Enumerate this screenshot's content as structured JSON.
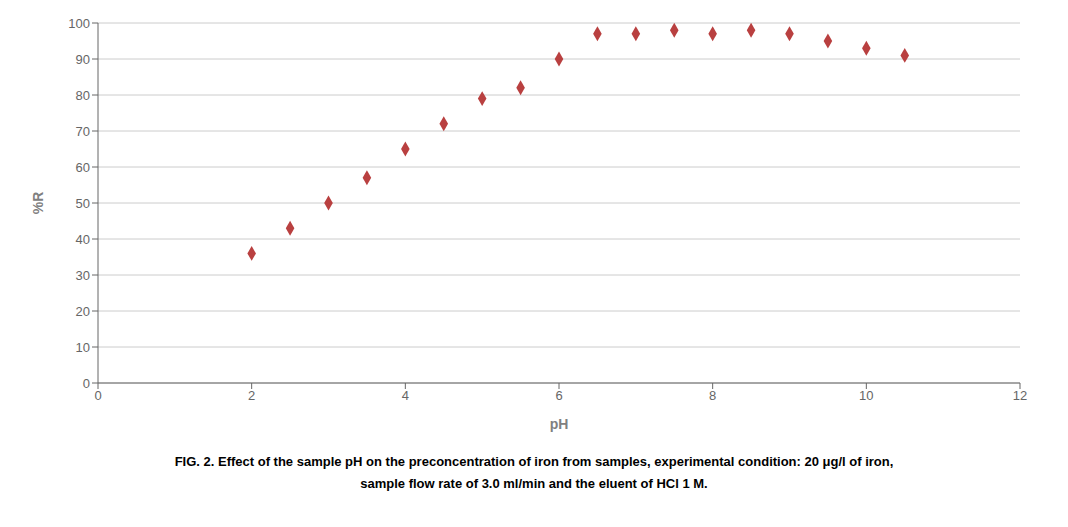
{
  "chart_data": {
    "type": "scatter",
    "x": [
      2.0,
      2.5,
      3.0,
      3.5,
      4.0,
      4.5,
      5.0,
      5.5,
      6.0,
      6.5,
      7.0,
      7.5,
      8.0,
      8.5,
      9.0,
      9.5,
      10.0,
      10.5
    ],
    "values": [
      36,
      43,
      50,
      57,
      65,
      72,
      79,
      82,
      90,
      97,
      97,
      98,
      97,
      98,
      97,
      95,
      93,
      91
    ],
    "color": "#b94040",
    "marker": "diamond",
    "xlabel": "pH",
    "ylabel": "%R",
    "xlim": [
      0,
      12
    ],
    "ylim": [
      0,
      100
    ],
    "xticks": [
      0,
      2,
      4,
      6,
      8,
      10,
      12
    ],
    "yticks": [
      0,
      10,
      20,
      30,
      40,
      50,
      60,
      70,
      80,
      90,
      100
    ],
    "grid": true,
    "annotations": [
      "FIG. 2. Effect of the sample pH on the preconcentration of iron from samples, experimental condition: 20 μg/l of iron,",
      "sample flow rate of 3.0 ml/min and the eluent of HCl 1 M."
    ]
  }
}
